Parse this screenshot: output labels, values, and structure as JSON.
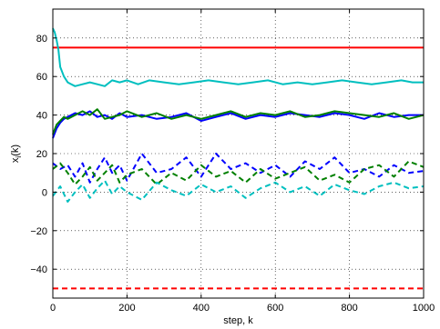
{
  "chart_data": {
    "type": "line",
    "title": "",
    "xlabel": "step, k",
    "ylabel_main": "x",
    "ylabel_sub": "i",
    "ylabel_tail": "(k)",
    "xlim": [
      0,
      1000
    ],
    "ylim": [
      -55,
      95
    ],
    "xticks": [
      0,
      200,
      400,
      600,
      800,
      1000
    ],
    "yticks": [
      -40,
      -20,
      0,
      20,
      40,
      60,
      80
    ],
    "xtick_labels": [
      "0",
      "200",
      "400",
      "600",
      "800",
      "1000"
    ],
    "ytick_labels": [
      "−40",
      "−20",
      "0",
      "20",
      "40",
      "60",
      "80"
    ],
    "grid": true,
    "colors": {
      "red": "#ff0000",
      "cyan": "#00bfbf",
      "blue": "#0000ff",
      "green": "#008000"
    },
    "series": [
      {
        "color": "red",
        "style": "solid",
        "x": [
          0,
          1000
        ],
        "y": [
          75,
          75
        ]
      },
      {
        "color": "red",
        "style": "dashed",
        "x": [
          0,
          1000
        ],
        "y": [
          -50,
          -50
        ]
      },
      {
        "color": "cyan",
        "style": "solid",
        "x": [
          0,
          5,
          10,
          15,
          20,
          30,
          40,
          50,
          60,
          80,
          100,
          120,
          140,
          160,
          180,
          200,
          230,
          260,
          300,
          340,
          380,
          420,
          460,
          500,
          540,
          580,
          620,
          660,
          700,
          740,
          780,
          820,
          860,
          900,
          940,
          970,
          1000
        ],
        "y": [
          85,
          83,
          79,
          74,
          65,
          60,
          57,
          56,
          55,
          56,
          57,
          56,
          55,
          58,
          57,
          58,
          56,
          58,
          57,
          56,
          57,
          58,
          57,
          56,
          57,
          58,
          56,
          57,
          56,
          57,
          58,
          57,
          56,
          57,
          58,
          57,
          57
        ]
      },
      {
        "color": "blue",
        "style": "solid",
        "x": [
          0,
          10,
          20,
          30,
          40,
          60,
          80,
          100,
          120,
          140,
          160,
          180,
          200,
          240,
          280,
          320,
          360,
          400,
          440,
          480,
          520,
          560,
          600,
          640,
          680,
          720,
          760,
          800,
          840,
          880,
          920,
          960,
          1000
        ],
        "y": [
          28,
          33,
          36,
          38,
          39,
          41,
          40,
          42,
          39,
          40,
          38,
          41,
          39,
          40,
          38,
          39,
          41,
          37,
          39,
          41,
          38,
          40,
          39,
          41,
          40,
          39,
          41,
          40,
          38,
          41,
          39,
          40,
          40
        ]
      },
      {
        "color": "green",
        "style": "solid",
        "x": [
          0,
          10,
          20,
          30,
          40,
          60,
          80,
          100,
          120,
          140,
          160,
          180,
          200,
          240,
          280,
          320,
          360,
          400,
          440,
          480,
          520,
          560,
          600,
          640,
          680,
          720,
          760,
          800,
          840,
          880,
          920,
          960,
          1000
        ],
        "y": [
          30,
          35,
          37,
          39,
          38,
          40,
          42,
          40,
          43,
          38,
          39,
          40,
          42,
          39,
          41,
          38,
          40,
          38,
          40,
          42,
          39,
          41,
          40,
          42,
          39,
          40,
          42,
          41,
          40,
          39,
          41,
          38,
          40
        ]
      },
      {
        "color": "blue",
        "style": "dashed",
        "x": [
          0,
          20,
          40,
          60,
          80,
          100,
          120,
          140,
          160,
          180,
          200,
          240,
          280,
          320,
          360,
          400,
          440,
          480,
          520,
          560,
          600,
          640,
          680,
          720,
          760,
          800,
          840,
          880,
          920,
          960,
          1000
        ],
        "y": [
          15,
          12,
          14,
          8,
          15,
          5,
          12,
          18,
          10,
          14,
          6,
          20,
          10,
          12,
          18,
          8,
          20,
          12,
          15,
          10,
          14,
          8,
          16,
          12,
          18,
          10,
          12,
          8,
          14,
          10,
          11
        ]
      },
      {
        "color": "green",
        "style": "dashed",
        "x": [
          0,
          20,
          40,
          60,
          80,
          100,
          120,
          140,
          160,
          180,
          200,
          240,
          280,
          320,
          360,
          400,
          440,
          480,
          520,
          560,
          600,
          640,
          680,
          720,
          760,
          800,
          840,
          880,
          920,
          960,
          1000
        ],
        "y": [
          12,
          15,
          10,
          4,
          8,
          13,
          6,
          10,
          14,
          5,
          9,
          12,
          4,
          10,
          6,
          14,
          8,
          11,
          5,
          12,
          7,
          10,
          13,
          6,
          9,
          5,
          12,
          14,
          8,
          16,
          13
        ]
      },
      {
        "color": "cyan",
        "style": "dashed",
        "x": [
          0,
          20,
          40,
          60,
          80,
          100,
          120,
          140,
          160,
          180,
          200,
          240,
          280,
          320,
          360,
          400,
          440,
          480,
          520,
          560,
          600,
          640,
          680,
          720,
          760,
          800,
          840,
          880,
          920,
          960,
          1000
        ],
        "y": [
          -2,
          3,
          -5,
          0,
          4,
          -3,
          2,
          6,
          -1,
          3,
          0,
          -4,
          5,
          1,
          -2,
          4,
          0,
          3,
          -3,
          2,
          5,
          0,
          3,
          -2,
          4,
          1,
          -1,
          3,
          5,
          2,
          3
        ]
      }
    ]
  }
}
